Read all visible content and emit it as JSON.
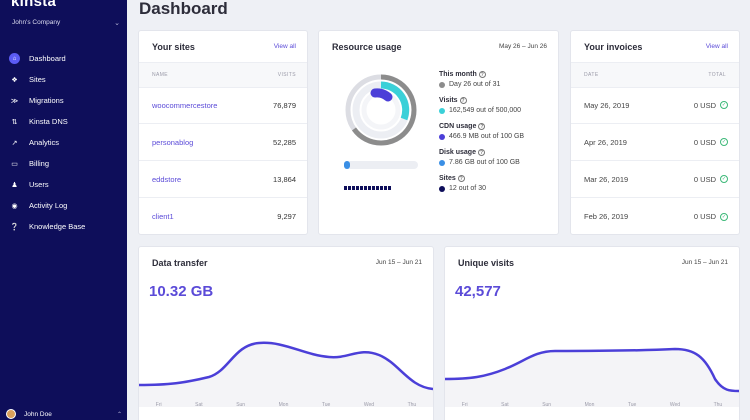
{
  "sidebar": {
    "logo": "kinsta",
    "company": "John's Company",
    "items": [
      {
        "label": "Dashboard",
        "icon": "home-icon"
      },
      {
        "label": "Sites",
        "icon": "sites-icon"
      },
      {
        "label": "Migrations",
        "icon": "migrations-icon"
      },
      {
        "label": "Kinsta DNS",
        "icon": "dns-icon"
      },
      {
        "label": "Analytics",
        "icon": "analytics-icon"
      },
      {
        "label": "Billing",
        "icon": "billing-icon"
      },
      {
        "label": "Users",
        "icon": "users-icon"
      },
      {
        "label": "Activity Log",
        "icon": "activity-icon"
      },
      {
        "label": "Knowledge Base",
        "icon": "knowledge-icon"
      }
    ],
    "user_name": "John Doe"
  },
  "page_title": "Dashboard",
  "sites": {
    "title": "Your sites",
    "view_all": "View all",
    "col_name": "NAME",
    "col_visits": "VISITS",
    "rows": [
      {
        "name": "woocommercestore",
        "visits": "76,879"
      },
      {
        "name": "personablog",
        "visits": "52,285"
      },
      {
        "name": "eddstore",
        "visits": "13,864"
      },
      {
        "name": "client1",
        "visits": "9,297"
      }
    ]
  },
  "resource": {
    "title": "Resource usage",
    "range": "May 26 – Jun 26",
    "this_month_label": "This month",
    "this_month_value": "Day 26 out of 31",
    "visits_label": "Visits",
    "visits_value": "162,549 out of 500,000",
    "cdn_label": "CDN usage",
    "cdn_value": "466.9 MB out of 100 GB",
    "disk_label": "Disk usage",
    "disk_value": "7.86 GB out of 100 GB",
    "sites_label": "Sites",
    "sites_value": "12 out of 30",
    "colors": {
      "month": "#8c8c8c",
      "visits": "#3ad0d8",
      "cdn": "#4b3fd8",
      "disk": "#3a8fe5",
      "sites": "#0e0e5a"
    },
    "disk_fraction": 0.08
  },
  "invoices": {
    "title": "Your invoices",
    "view_all": "View all",
    "col_date": "DATE",
    "col_total": "TOTAL",
    "rows": [
      {
        "date": "May 26, 2019",
        "total": "0 USD"
      },
      {
        "date": "Apr 26, 2019",
        "total": "0 USD"
      },
      {
        "date": "Mar 26, 2019",
        "total": "0 USD"
      },
      {
        "date": "Feb 26, 2019",
        "total": "0 USD"
      }
    ]
  },
  "transfer": {
    "title": "Data transfer",
    "range": "Jun 15 – Jun 21",
    "value": "10.32 GB",
    "days": [
      "Fri",
      "Sat",
      "Sun",
      "Mon",
      "Tue",
      "Wed",
      "Thu"
    ]
  },
  "visits": {
    "title": "Unique visits",
    "range": "Jun 15 – Jun 21",
    "value": "42,577",
    "days": [
      "Fri",
      "Sat",
      "Sun",
      "Mon",
      "Tue",
      "Wed",
      "Thu"
    ]
  }
}
